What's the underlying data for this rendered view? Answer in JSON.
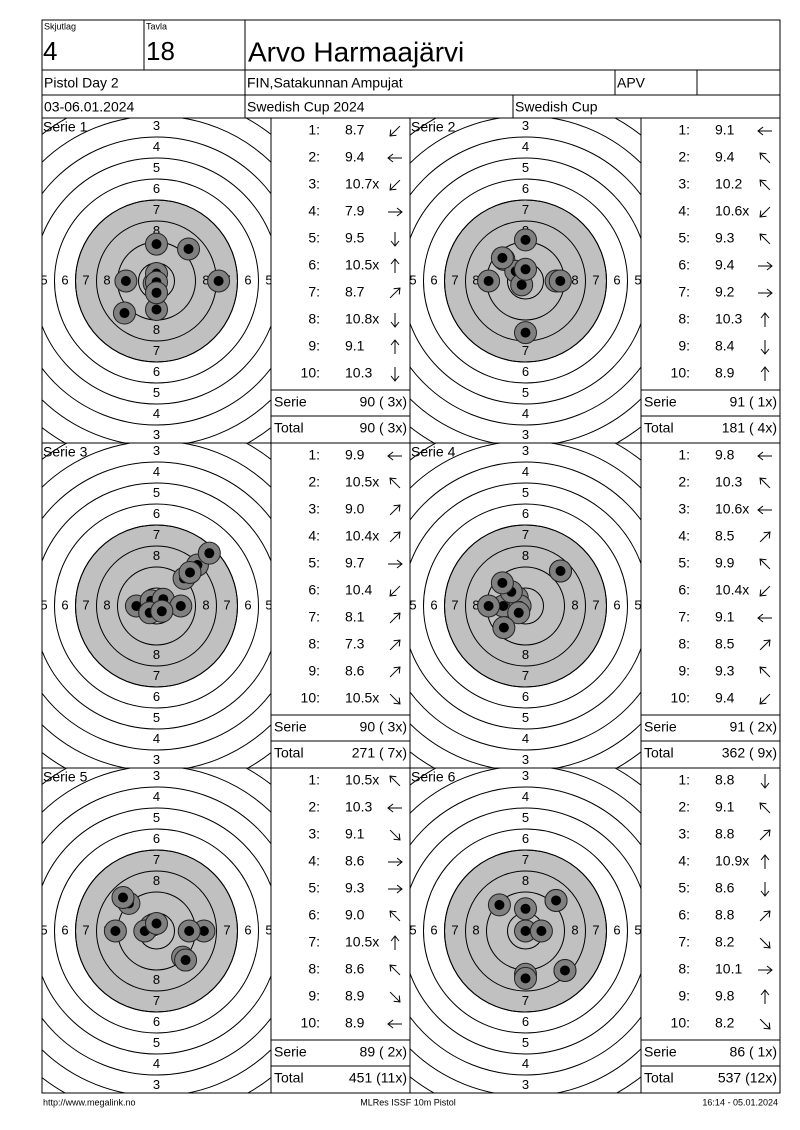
{
  "header": {
    "skjutlag_label": "Skjutlag",
    "skjutlag": "4",
    "tavla_label": "Tavla",
    "tavla": "18",
    "name": "Arvo Harmaajärvi",
    "event": "Pistol Day 2",
    "club": "FIN,Satakunnan Ampujat",
    "class": "APV",
    "dates": "03-06.01.2024",
    "competition": "Swedish Cup 2024",
    "cup": "Swedish Cup"
  },
  "target": {
    "ring_labels": [
      "3",
      "4",
      "5",
      "6",
      "7",
      "8"
    ]
  },
  "series": [
    {
      "label": "Serie 1",
      "shots": [
        {
          "no": "1:",
          "value": "8.7",
          "arrow": "sw"
        },
        {
          "no": "2:",
          "value": "9.4",
          "arrow": "w"
        },
        {
          "no": "3:",
          "value": "10.7x",
          "arrow": "sw"
        },
        {
          "no": "4:",
          "value": "7.9",
          "arrow": "e"
        },
        {
          "no": "5:",
          "value": "9.5",
          "arrow": "s"
        },
        {
          "no": "6:",
          "value": "10.5x",
          "arrow": "n"
        },
        {
          "no": "7:",
          "value": "8.7",
          "arrow": "ne"
        },
        {
          "no": "8:",
          "value": "10.8x",
          "arrow": "s"
        },
        {
          "no": "9:",
          "value": "9.1",
          "arrow": "n"
        },
        {
          "no": "10:",
          "value": "10.3",
          "arrow": "s"
        }
      ],
      "serie_label": "Serie",
      "serie_total": "90 ( 3x)",
      "total_label": "Total",
      "total": "90 ( 3x)"
    },
    {
      "label": "Serie 2",
      "shots": [
        {
          "no": "1:",
          "value": "9.1",
          "arrow": "w"
        },
        {
          "no": "2:",
          "value": "9.4",
          "arrow": "nw"
        },
        {
          "no": "3:",
          "value": "10.2",
          "arrow": "nw"
        },
        {
          "no": "4:",
          "value": "10.6x",
          "arrow": "sw"
        },
        {
          "no": "5:",
          "value": "9.3",
          "arrow": "nw"
        },
        {
          "no": "6:",
          "value": "9.4",
          "arrow": "e"
        },
        {
          "no": "7:",
          "value": "9.2",
          "arrow": "e"
        },
        {
          "no": "8:",
          "value": "10.3",
          "arrow": "n"
        },
        {
          "no": "9:",
          "value": "8.4",
          "arrow": "s"
        },
        {
          "no": "10:",
          "value": "8.9",
          "arrow": "n"
        }
      ],
      "serie_label": "Serie",
      "serie_total": "91 ( 1x)",
      "total_label": "Total",
      "total": "181 ( 4x)"
    },
    {
      "label": "Serie 3",
      "shots": [
        {
          "no": "1:",
          "value": "9.9",
          "arrow": "w"
        },
        {
          "no": "2:",
          "value": "10.5x",
          "arrow": "nw"
        },
        {
          "no": "3:",
          "value": "9.0",
          "arrow": "ne"
        },
        {
          "no": "4:",
          "value": "10.4x",
          "arrow": "ne"
        },
        {
          "no": "5:",
          "value": "9.7",
          "arrow": "e"
        },
        {
          "no": "6:",
          "value": "10.4",
          "arrow": "sw"
        },
        {
          "no": "7:",
          "value": "8.1",
          "arrow": "ne"
        },
        {
          "no": "8:",
          "value": "7.3",
          "arrow": "ne"
        },
        {
          "no": "9:",
          "value": "8.6",
          "arrow": "ne"
        },
        {
          "no": "10:",
          "value": "10.5x",
          "arrow": "se"
        }
      ],
      "serie_label": "Serie",
      "serie_total": "90 ( 3x)",
      "total_label": "Total",
      "total": "271 ( 7x)"
    },
    {
      "label": "Serie 4",
      "shots": [
        {
          "no": "1:",
          "value": "9.8",
          "arrow": "w"
        },
        {
          "no": "2:",
          "value": "10.3",
          "arrow": "nw"
        },
        {
          "no": "3:",
          "value": "10.6x",
          "arrow": "w"
        },
        {
          "no": "4:",
          "value": "8.5",
          "arrow": "ne"
        },
        {
          "no": "5:",
          "value": "9.9",
          "arrow": "nw"
        },
        {
          "no": "6:",
          "value": "10.4x",
          "arrow": "sw"
        },
        {
          "no": "7:",
          "value": "9.1",
          "arrow": "w"
        },
        {
          "no": "8:",
          "value": "8.5",
          "arrow": "ne"
        },
        {
          "no": "9:",
          "value": "9.3",
          "arrow": "nw"
        },
        {
          "no": "10:",
          "value": "9.4",
          "arrow": "sw"
        }
      ],
      "serie_label": "Serie",
      "serie_total": "91 ( 2x)",
      "total_label": "Total",
      "total": "362 ( 9x)"
    },
    {
      "label": "Serie 5",
      "shots": [
        {
          "no": "1:",
          "value": "10.5x",
          "arrow": "nw"
        },
        {
          "no": "2:",
          "value": "10.3",
          "arrow": "w"
        },
        {
          "no": "3:",
          "value": "9.1",
          "arrow": "se"
        },
        {
          "no": "4:",
          "value": "8.6",
          "arrow": "e"
        },
        {
          "no": "5:",
          "value": "9.3",
          "arrow": "e"
        },
        {
          "no": "6:",
          "value": "9.0",
          "arrow": "nw"
        },
        {
          "no": "7:",
          "value": "10.5x",
          "arrow": "n"
        },
        {
          "no": "8:",
          "value": "8.6",
          "arrow": "nw"
        },
        {
          "no": "9:",
          "value": "8.9",
          "arrow": "se"
        },
        {
          "no": "10:",
          "value": "8.9",
          "arrow": "w"
        }
      ],
      "serie_label": "Serie",
      "serie_total": "89 ( 2x)",
      "total_label": "Total",
      "total": "451 (11x)"
    },
    {
      "label": "Serie 6",
      "shots": [
        {
          "no": "1:",
          "value": "8.8",
          "arrow": "s"
        },
        {
          "no": "2:",
          "value": "9.1",
          "arrow": "nw"
        },
        {
          "no": "3:",
          "value": "8.8",
          "arrow": "ne"
        },
        {
          "no": "4:",
          "value": "10.9x",
          "arrow": "n"
        },
        {
          "no": "5:",
          "value": "8.6",
          "arrow": "s"
        },
        {
          "no": "6:",
          "value": "8.8",
          "arrow": "ne"
        },
        {
          "no": "7:",
          "value": "8.2",
          "arrow": "se"
        },
        {
          "no": "8:",
          "value": "10.1",
          "arrow": "e"
        },
        {
          "no": "9:",
          "value": "9.8",
          "arrow": "n"
        },
        {
          "no": "10:",
          "value": "8.2",
          "arrow": "se"
        }
      ],
      "serie_label": "Serie",
      "serie_total": "86 ( 1x)",
      "total_label": "Total",
      "total": "537 (12x)"
    }
  ],
  "footer": {
    "url": "http://www.megalink.no",
    "program": "MLRes ISSF 10m Pistol",
    "timestamp": "16:14 - 05.01.2024"
  }
}
